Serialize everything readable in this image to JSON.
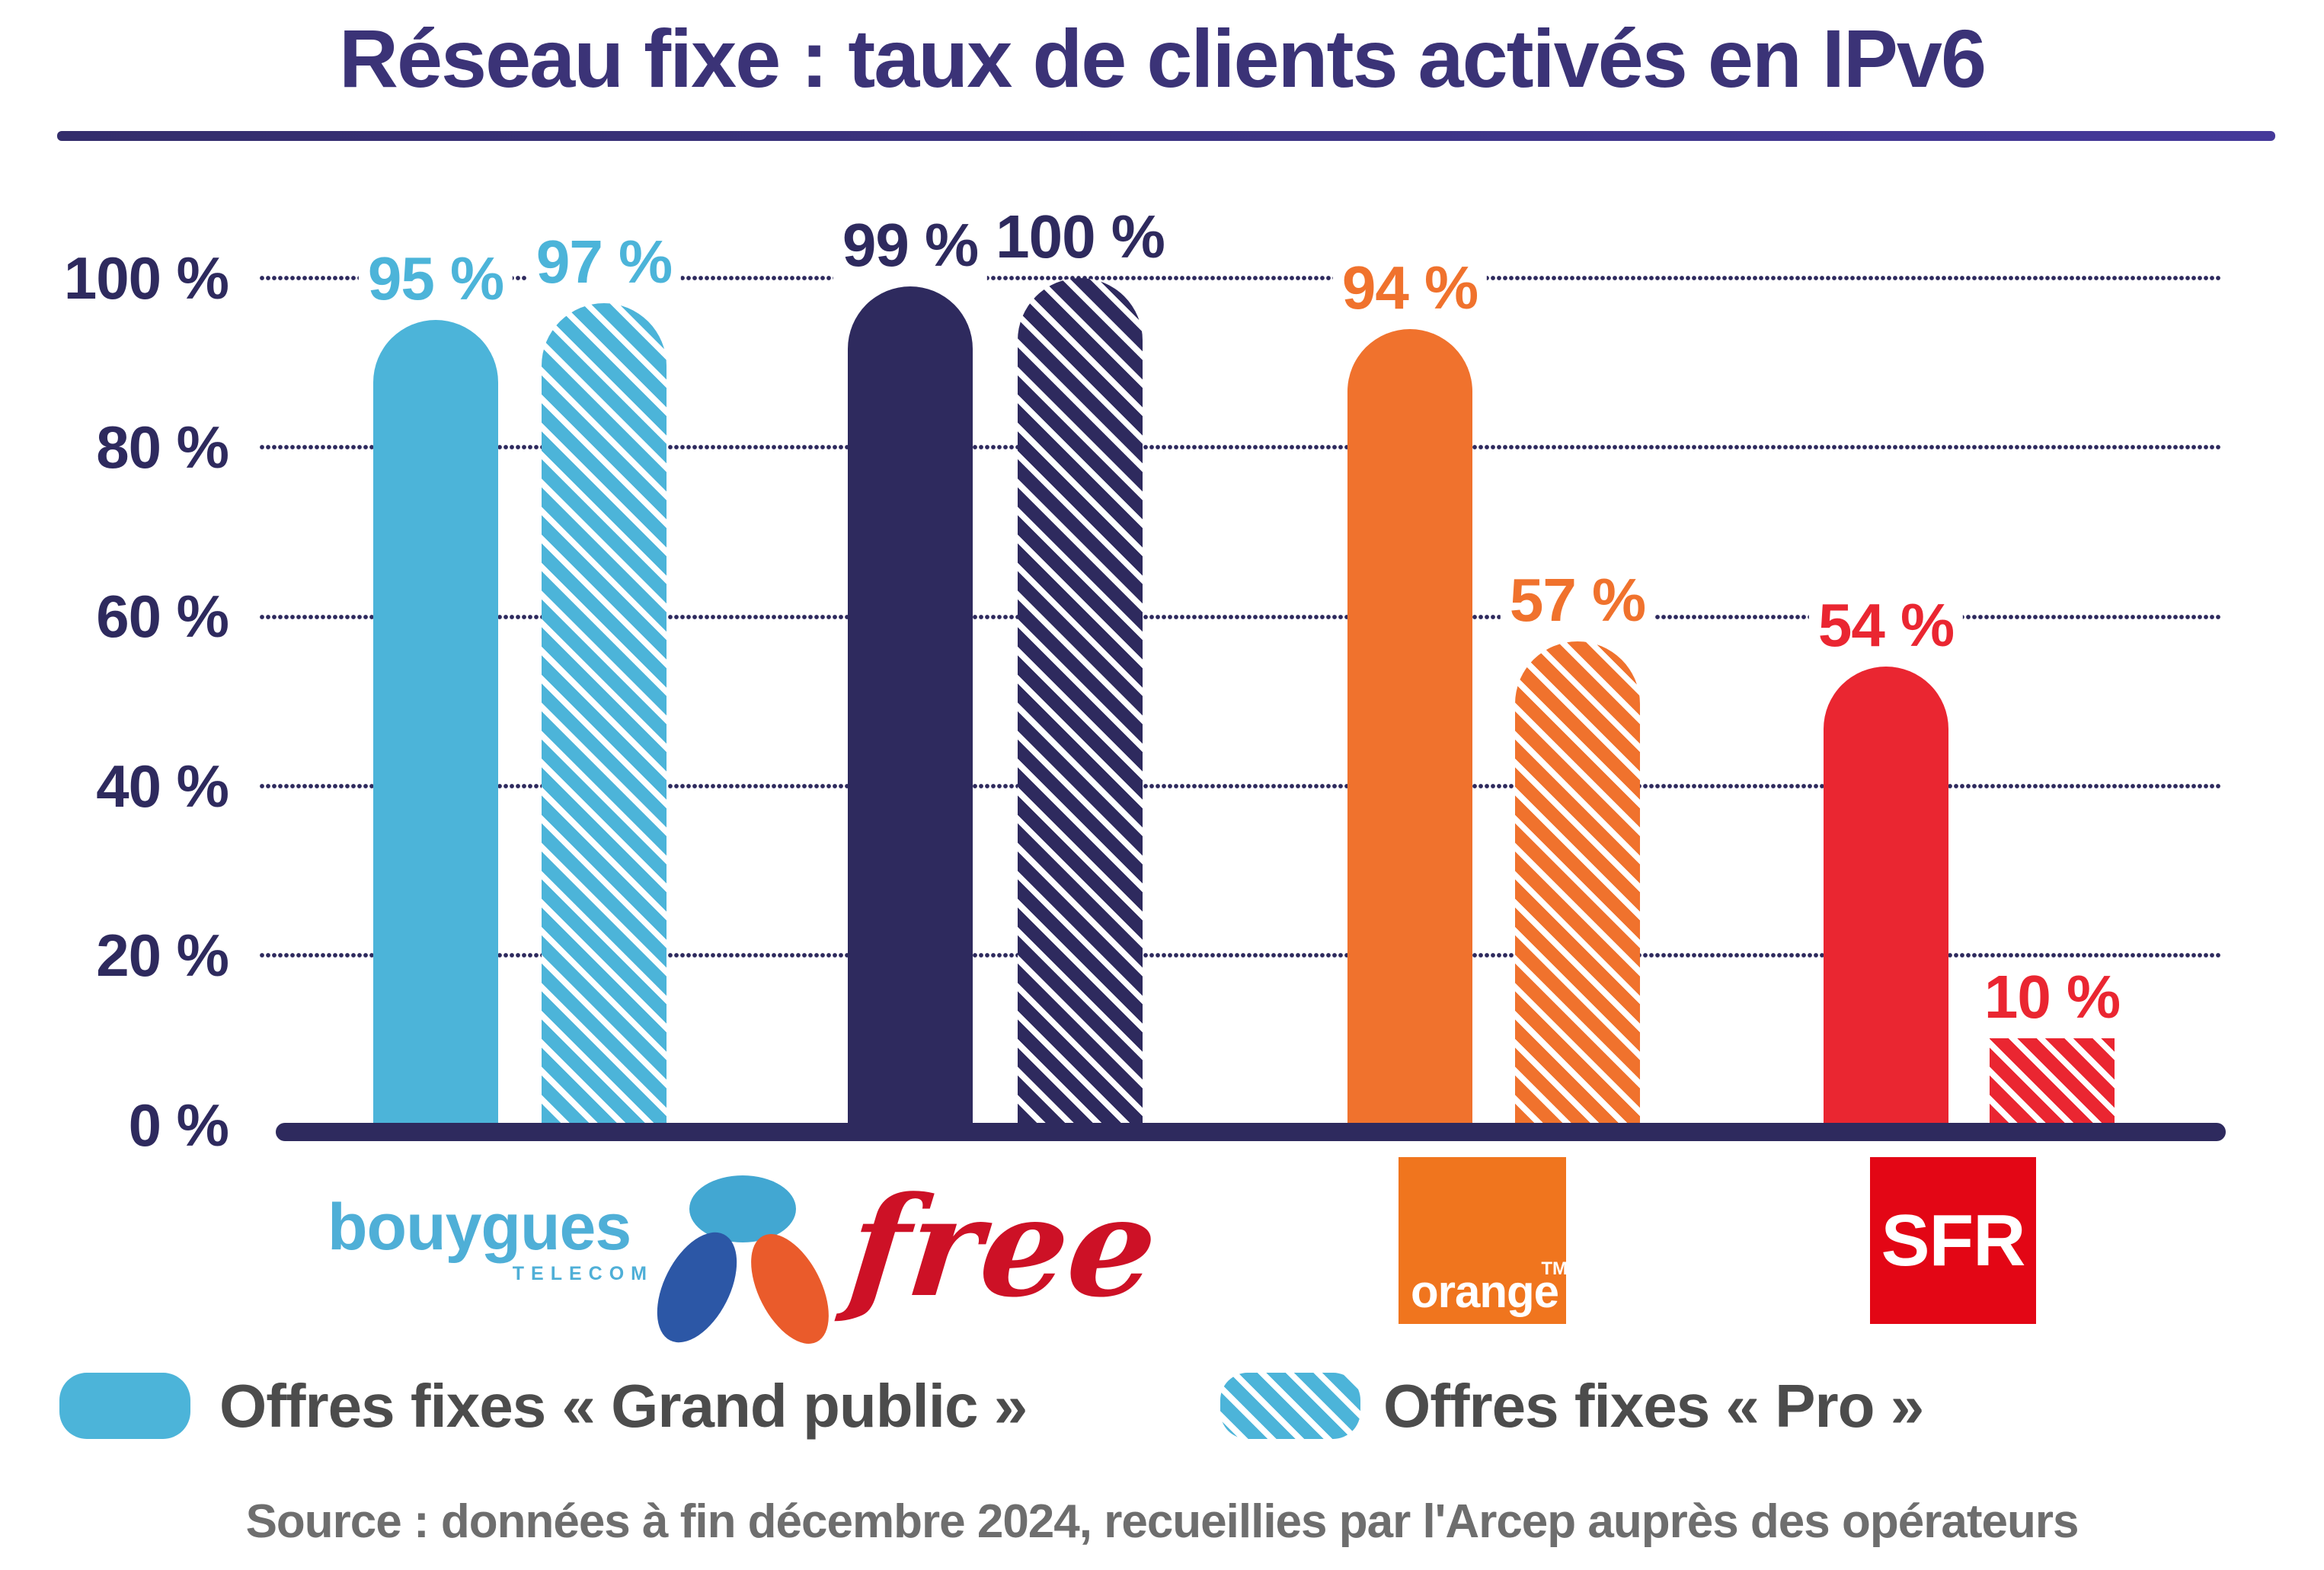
{
  "title": {
    "text": "Réseau fixe : taux de clients activés en IPv6"
  },
  "y_axis": {
    "labels": [
      "100 %",
      "80 %",
      "60 %",
      "40 %",
      "20 %",
      "0 %"
    ]
  },
  "chart_data": {
    "type": "bar",
    "title": "Réseau fixe : taux de clients activés en IPv6",
    "categories": [
      "Bouygues Telecom",
      "Free",
      "Orange",
      "SFR"
    ],
    "series": [
      {
        "name": "Offres fixes « Grand public »",
        "values": [
          95,
          99,
          94,
          54
        ]
      },
      {
        "name": "Offres fixes « Pro »",
        "values": [
          97,
          100,
          57,
          10
        ]
      }
    ],
    "ylim": [
      0,
      100
    ],
    "yticks": [
      0,
      20,
      40,
      60,
      80,
      100
    ],
    "grid": "dotted-horizontal",
    "legend_position": "bottom",
    "bars": [
      {
        "operator": "Bouygues Telecom",
        "offer": "Grand public",
        "value": 95,
        "label": "95 %",
        "color": "#4cb4d9",
        "hatched": false
      },
      {
        "operator": "Bouygues Telecom",
        "offer": "Pro",
        "value": 97,
        "label": "97 %",
        "color": "#4cb4d9",
        "hatched": true
      },
      {
        "operator": "Free",
        "offer": "Grand public",
        "value": 99,
        "label": "99 %",
        "color": "#2e2a5e",
        "hatched": false
      },
      {
        "operator": "Free",
        "offer": "Pro",
        "value": 100,
        "label": "100 %",
        "color": "#2e2a5e",
        "hatched": true
      },
      {
        "operator": "Orange",
        "offer": "Grand public",
        "value": 94,
        "label": "94 %",
        "color": "#f0722d",
        "hatched": false
      },
      {
        "operator": "Orange",
        "offer": "Pro",
        "value": 57,
        "label": "57 %",
        "color": "#f0722d",
        "hatched": true
      },
      {
        "operator": "SFR",
        "offer": "Grand public",
        "value": 54,
        "label": "54 %",
        "color": "#ea2631",
        "hatched": false
      },
      {
        "operator": "SFR",
        "offer": "Pro",
        "value": 10,
        "label": "10 %",
        "color": "#ea2631",
        "hatched": true
      }
    ]
  },
  "legend": {
    "items": [
      {
        "label": "Offres fixes « Grand public »",
        "style": "solid"
      },
      {
        "label": "Offres fixes « Pro »",
        "style": "hatched"
      }
    ]
  },
  "logos": {
    "bouygues": {
      "text": "bouygues",
      "subtext": "TELECOM"
    },
    "free": {
      "text": "free"
    },
    "orange": {
      "text": "orange",
      "tm": "TM"
    },
    "sfr": {
      "text": "SFR"
    }
  },
  "source": {
    "text": "Source : données à fin décembre 2024, recueillies par l'Arcep auprès des opérateurs"
  },
  "colors": {
    "navy": "#2e2a5e",
    "title_navy": "#3b3377",
    "bouygues_blue": "#4cb4d9",
    "orange": "#f0722d",
    "sfr_red": "#ea2631",
    "free_logo_red": "#cd1126",
    "orange_logo": "#f0751e",
    "sfr_logo_red": "#e30615",
    "legend_text_gray": "#4c4c4c",
    "source_gray": "#6e6e6e"
  }
}
